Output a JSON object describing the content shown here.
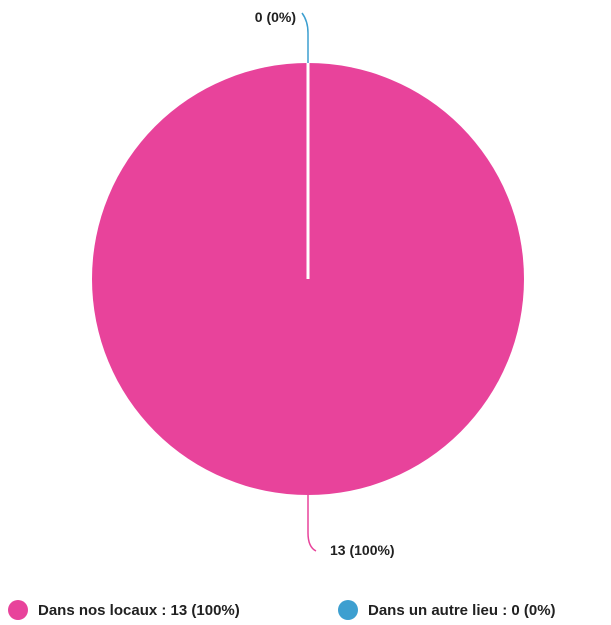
{
  "chart_data": {
    "type": "pie",
    "title": "",
    "slices": [
      {
        "name": "Dans nos locaux",
        "value": 13,
        "percent": 100,
        "color": "#e8439b",
        "data_label": "13 (100%)",
        "legend_label": "Dans nos locaux : 13 (100%)"
      },
      {
        "name": "Dans un autre lieu",
        "value": 0,
        "percent": 0,
        "color": "#3d9fd0",
        "data_label": "0 (0%)",
        "legend_label": "Dans un autre lieu : 0 (0%)"
      }
    ],
    "legend_position": "bottom"
  }
}
